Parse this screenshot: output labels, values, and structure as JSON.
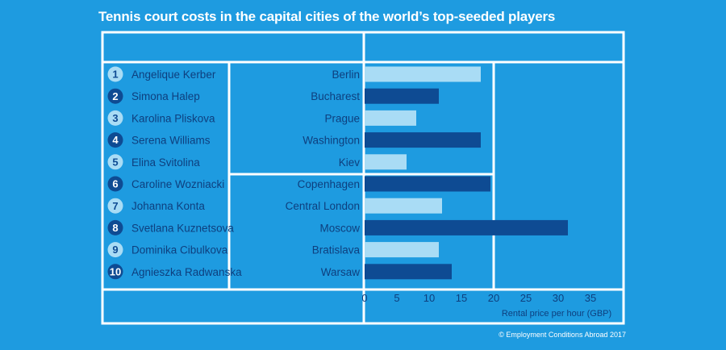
{
  "title": "Tennis court costs in the capital cities of the world’s top-seeded players",
  "footer": "© Employment Conditions Abroad 2017",
  "colors": {
    "background": "#1e9be0",
    "grid": "#ffffff",
    "light_bar": "#a9dcf5",
    "dark_bar": "#0e4b93",
    "text": "#0e3f7e"
  },
  "chart_data": {
    "type": "bar",
    "orientation": "horizontal",
    "xlabel": "Rental price per hour (GBP)",
    "xlim": [
      0,
      40
    ],
    "xticks": [
      0,
      5,
      10,
      15,
      20,
      25,
      30,
      35
    ],
    "rows": [
      {
        "rank": "1",
        "player": "Angelique Kerber",
        "city": "Berlin",
        "value": 18
      },
      {
        "rank": "2",
        "player": "Simona Halep",
        "city": "Bucharest",
        "value": 11.5
      },
      {
        "rank": "3",
        "player": "Karolina Pliskova",
        "city": "Prague",
        "value": 8
      },
      {
        "rank": "4",
        "player": "Serena Williams",
        "city": "Washington",
        "value": 18
      },
      {
        "rank": "5",
        "player": "Elina Svitolina",
        "city": "Kiev",
        "value": 6.5
      },
      {
        "rank": "6",
        "player": "Caroline Wozniacki",
        "city": "Copenhagen",
        "value": 19.5
      },
      {
        "rank": "7",
        "player": "Johanna Konta",
        "city": "Central London",
        "value": 12
      },
      {
        "rank": "8",
        "player": "Svetlana Kuznetsova",
        "city": "Moscow",
        "value": 31.5
      },
      {
        "rank": "9",
        "player": "Dominika Cibulkova",
        "city": "Bratislava",
        "value": 11.5
      },
      {
        "rank": "10",
        "player": "Agnieszka Radwanska",
        "city": "Warsaw",
        "value": 13.5
      }
    ]
  }
}
